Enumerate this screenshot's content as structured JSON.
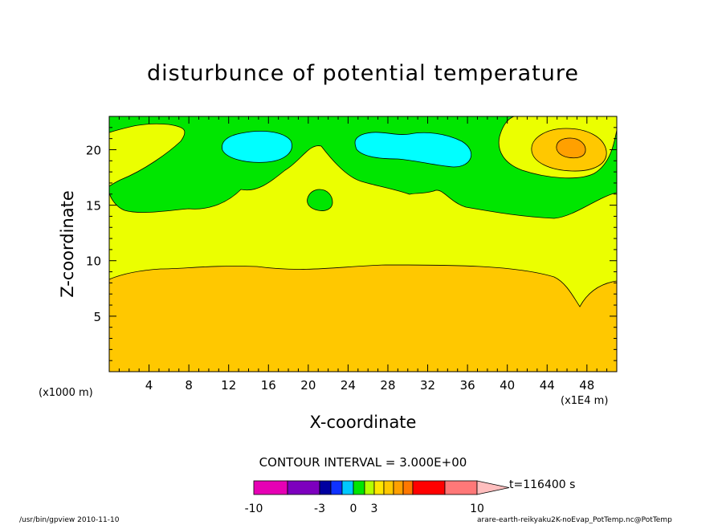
{
  "chart_data": {
    "type": "heatmap",
    "title": "disturbunce of potential temperature",
    "xlabel": "X-coordinate",
    "ylabel": "Z-coordinate",
    "x_unit_left": "(x1000 m)",
    "x_unit_right": "(x1E4 m)",
    "xlim": [
      0,
      51
    ],
    "ylim": [
      0,
      23
    ],
    "xticks": [
      4,
      8,
      12,
      16,
      20,
      24,
      28,
      32,
      36,
      40,
      44,
      48
    ],
    "yticks": [
      5,
      10,
      15,
      20
    ],
    "contour_interval_text": "CONTOUR INTERVAL = 3.000E+00",
    "time_text": "t=116400 s",
    "colorbar_labels": [
      "-10",
      "-3",
      "0",
      "3",
      "10"
    ],
    "colorbar_colors": [
      "#e600b4",
      "#7d00be",
      "#0000a0",
      "#0f32ff",
      "#00c8ff",
      "#00e600",
      "#b4ff00",
      "#ffe600",
      "#ffc800",
      "#ffa000",
      "#ff7800",
      "#ff0000",
      "#ff7878",
      "#ffbebe"
    ],
    "fill_colors": {
      "orange_low": "#ffc800",
      "yellow": "#ebff00",
      "green": "#00e600",
      "cyan": "#00ffff",
      "dark_orange": "#ffa000"
    }
  },
  "footer": {
    "left": "/usr/bin/gpview   2010-11-10",
    "right": "arare-earth-reikyaku2K-noEvap_PotTemp.nc@PotTemp"
  }
}
